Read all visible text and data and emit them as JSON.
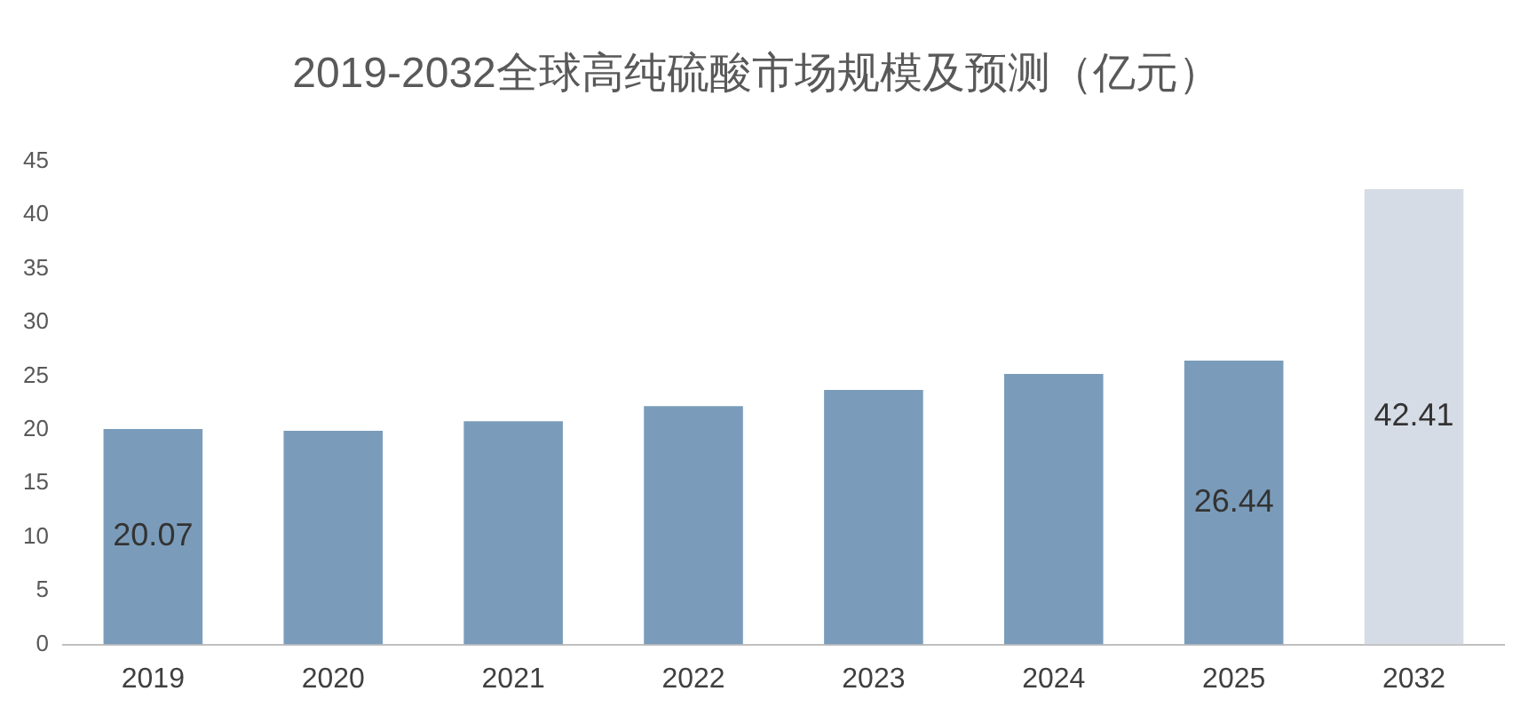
{
  "chart_data": {
    "type": "bar",
    "title": "2019-2032全球高纯硫酸市场规模及预测（亿元）",
    "categories": [
      "2019",
      "2020",
      "2021",
      "2022",
      "2023",
      "2024",
      "2025",
      "2032"
    ],
    "values": [
      20.07,
      19.9,
      20.8,
      22.2,
      23.7,
      25.2,
      26.44,
      42.41
    ],
    "colors": [
      "#7a9cba",
      "#7a9cba",
      "#7a9cba",
      "#7a9cba",
      "#7a9cba",
      "#7a9cba",
      "#7a9cba",
      "#d6dce5"
    ],
    "value_labels": [
      "20.07",
      null,
      null,
      null,
      null,
      null,
      "26.44",
      "42.41"
    ],
    "ylim": [
      0,
      45
    ],
    "yticks": [
      0,
      5,
      10,
      15,
      20,
      25,
      30,
      35,
      40,
      45
    ],
    "grid": false,
    "legend": false
  }
}
